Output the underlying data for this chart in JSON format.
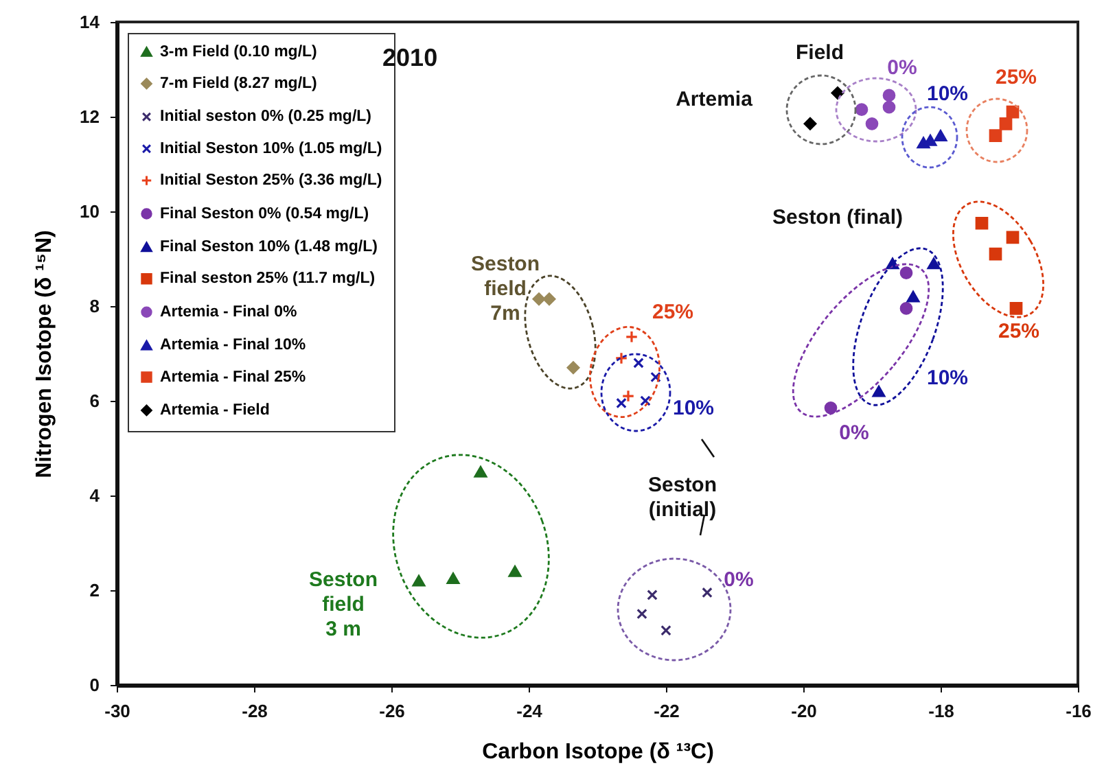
{
  "chart_data": {
    "type": "scatter",
    "title": "2010",
    "xlabel": "Carbon Isotope (δ ¹³C)",
    "ylabel": "Nitrogen Isotope (δ ¹⁵N)",
    "xlim": [
      -30,
      -16
    ],
    "xticks": [
      -30,
      -28,
      -26,
      -24,
      -22,
      -20,
      -18,
      -16
    ],
    "ylim": [
      0,
      14
    ],
    "yticks": [
      0,
      2,
      4,
      6,
      8,
      10,
      12,
      14
    ],
    "grid": false,
    "legend": "top left",
    "series": [
      {
        "name": "3-m Field (0.10 mg/L)",
        "color": "#1e6e1e",
        "marker": "triangle",
        "x": [
          -25.6,
          -25.1,
          -24.7,
          -24.2
        ],
        "values": [
          2.2,
          2.25,
          4.5,
          2.4
        ]
      },
      {
        "name": "7-m Field (8.27 mg/L)",
        "color": "#9b8a5a",
        "marker": "diamond",
        "x": [
          -23.85,
          -23.7,
          -23.35
        ],
        "values": [
          8.15,
          8.15,
          6.7
        ]
      },
      {
        "name": "Initial seston  0% (0.25 mg/L)",
        "color": "#3c2c6c",
        "marker": "x",
        "x": [
          -22.2,
          -22.35,
          -22.0,
          -21.4
        ],
        "values": [
          1.9,
          1.5,
          1.15,
          1.95
        ]
      },
      {
        "name": "Initial Seston 10% (1.05 mg/L)",
        "color": "#1a1aa8",
        "marker": "x",
        "x": [
          -22.4,
          -22.15,
          -22.65,
          -22.3
        ],
        "values": [
          6.8,
          6.5,
          5.95,
          6.0
        ]
      },
      {
        "name": "Initial Seston 25% (3.36 mg/L)",
        "color": "#e8401c",
        "marker": "cross",
        "x": [
          -22.5,
          -22.65,
          -22.55
        ],
        "values": [
          7.35,
          6.9,
          6.1
        ]
      },
      {
        "name": "Final Seston   0% (0.54 mg/L)",
        "color": "#7a34a8",
        "marker": "circle",
        "x": [
          -18.5,
          -18.5,
          -19.6
        ],
        "values": [
          8.7,
          7.95,
          5.85
        ]
      },
      {
        "name": "Final Seston 10% (1.48 mg/L)",
        "color": "#10109a",
        "marker": "triangle",
        "x": [
          -18.7,
          -18.1,
          -18.4,
          -18.9
        ],
        "values": [
          8.9,
          8.9,
          8.2,
          6.2
        ]
      },
      {
        "name": "Final seston 25% (11.7 mg/L)",
        "color": "#d8380c",
        "marker": "square",
        "x": [
          -17.4,
          -16.95,
          -17.2,
          -16.9
        ],
        "values": [
          9.75,
          9.45,
          9.1,
          7.95
        ]
      },
      {
        "name": "Artemia - Final 0%",
        "color": "#8a48b8",
        "marker": "circle",
        "x": [
          -19.15,
          -19.0,
          -18.75,
          -18.75
        ],
        "values": [
          12.15,
          11.85,
          12.45,
          12.2
        ]
      },
      {
        "name": "Artemia - Final 10%",
        "color": "#1a1aa8",
        "marker": "triangle",
        "x": [
          -18.25,
          -18.15,
          -18.0
        ],
        "values": [
          11.45,
          11.5,
          11.6
        ]
      },
      {
        "name": "Artemia - Final 25%",
        "color": "#e0401a",
        "marker": "square",
        "x": [
          -17.2,
          -17.05,
          -16.95
        ],
        "values": [
          11.6,
          11.85,
          12.1
        ]
      },
      {
        "name": "Artemia - Field",
        "color": "#000000",
        "marker": "diamond",
        "x": [
          -19.5,
          -19.9
        ],
        "values": [
          12.5,
          11.85
        ]
      }
    ],
    "annotations": [
      "Field",
      "Artemia",
      "0%",
      "10%",
      "25%",
      "Seston (final)",
      "10%",
      "0%",
      "25%",
      "Seston\nfield\n7m",
      "25%",
      "10%",
      "Seston\n(initial)",
      "0%",
      "Seston\nfield\n3 m"
    ]
  }
}
